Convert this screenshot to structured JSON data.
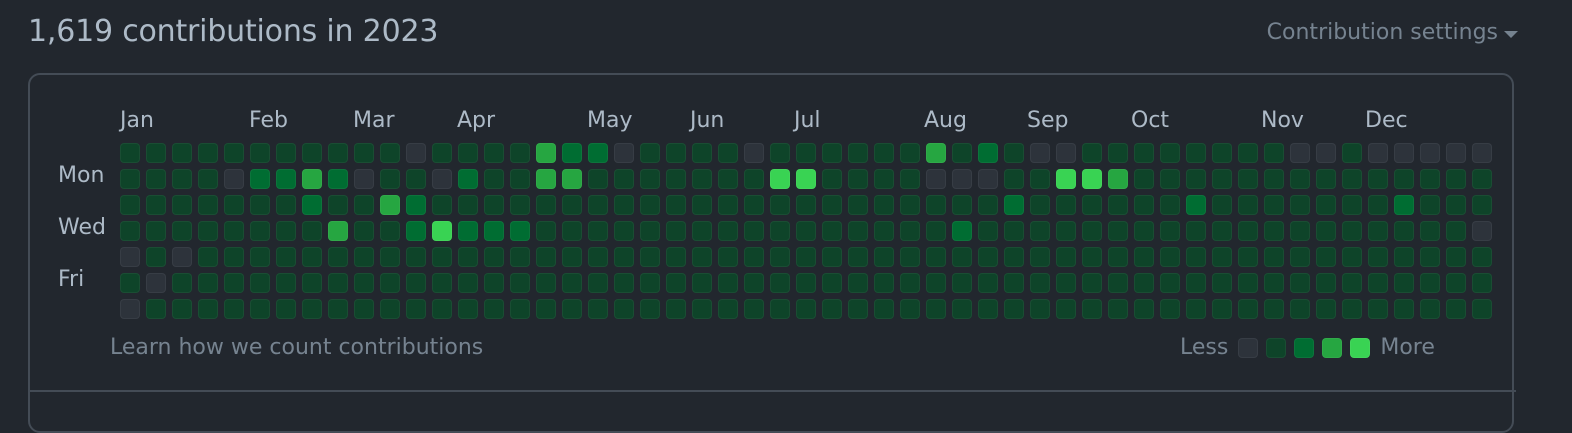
{
  "header": {
    "title": "1,619 contributions in 2023",
    "settings_label": "Contribution settings"
  },
  "calendar": {
    "months": [
      "Jan",
      "Feb",
      "Mar",
      "Apr",
      "May",
      "Jun",
      "Jul",
      "Aug",
      "Sep",
      "Oct",
      "Nov",
      "Dec"
    ],
    "day_labels": [
      "Mon",
      "Wed",
      "Fri"
    ],
    "level_colors": [
      "#2d333b",
      "#0e4429",
      "#006d32",
      "#26a641",
      "#39d353"
    ],
    "levels": [
      "1111111111101111322011110111111312100111111110010000001001111111111111111111101100010000111011111011111100000111111111111111111111111120000001111011",
      "1111022320110211331111111441111000114431111111111111111111111100000000001101001000000000000000000010000000000111111011111111111000000001111001000001",
      "1111111211321111111111111111111111211111121111111211110001110000000000001001100100000000000000000000000001010000000000001100000100000000200111110",
      "1111111131124222111111111111111121111111111111111111000000000000000000000011010000000000000000000000000001000000000000000000000000000000000011110",
      "0101111111111111111111111111111111111111111111111111111100000000000000000000000000000000000000000000000000000000000000000000000000000000000000000",
      "1011111111111111111111111111111111111111111111111111111100000000000000000000000000000000000000000000000000000000000000000000000000000000000000000",
      "0111111111111111111111111111111111111111111111111111111110000000000000000000000000000000000000000000000000000000000000000000000000000000000000000"
    ],
    "learn_link": "Learn how we count contributions",
    "legend_less": "Less",
    "legend_more": "More"
  }
}
